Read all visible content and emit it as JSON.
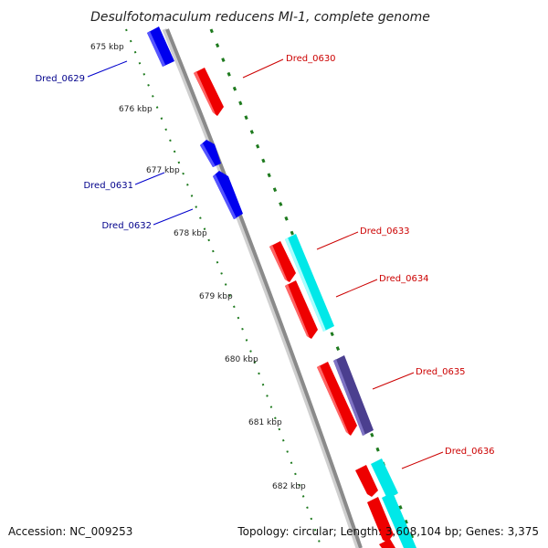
{
  "title": "Desulfotomaculum reducens MI-1, complete genome",
  "accession": "Accession: NC_009253",
  "summary": "Topology: circular; Length: 3,608,104 bp; Genes: 3,375",
  "colors": {
    "backbone": "#8a8a8a",
    "ticks": "#1e7a1e",
    "forward_gene": "#ee0000",
    "reverse_gene": "#0000ee",
    "feature_cyan": "#00e8e8",
    "feature_purple": "#4b3f8f",
    "forward_label": "#cc0000",
    "reverse_label": "#00008b"
  },
  "kbp_ticks": [
    "675 kbp",
    "676 kbp",
    "677 kbp",
    "678 kbp",
    "679 kbp",
    "680 kbp",
    "681 kbp",
    "682 kbp"
  ],
  "genes": {
    "forward": [
      "Dred_0630",
      "Dred_0633",
      "Dred_0634",
      "Dred_0635",
      "Dred_0636"
    ],
    "reverse": [
      "Dred_0629",
      "Dred_0631",
      "Dred_0632"
    ]
  }
}
